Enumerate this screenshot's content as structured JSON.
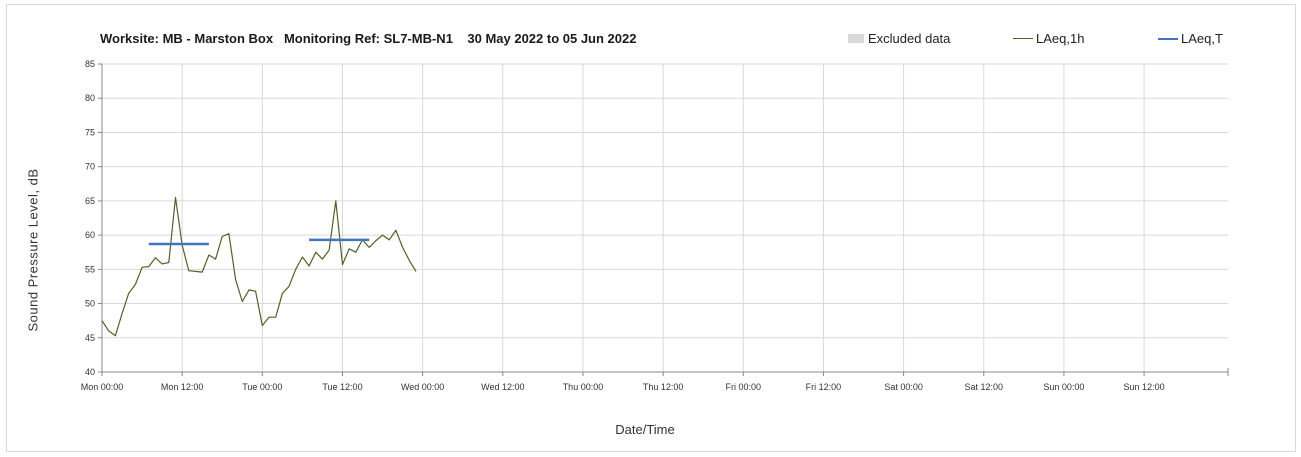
{
  "chart_data": {
    "type": "line",
    "title": "Worksite: MB - Marston Box   Monitoring Ref: SL7-MB-N1    30 May 2022 to 05 Jun 2022",
    "xlabel": "Date/Time",
    "ylabel": "Sound Pressure Level, dB",
    "ylim": [
      40,
      85
    ],
    "yticks": [
      40,
      45,
      50,
      55,
      60,
      65,
      70,
      75,
      80,
      85
    ],
    "xlim_hours": [
      0,
      168
    ],
    "xticks": [
      {
        "hour": 0,
        "label": "Mon 00:00"
      },
      {
        "hour": 12,
        "label": "Mon 12:00"
      },
      {
        "hour": 24,
        "label": "Tue 00:00"
      },
      {
        "hour": 36,
        "label": "Tue 12:00"
      },
      {
        "hour": 48,
        "label": "Wed 00:00"
      },
      {
        "hour": 60,
        "label": "Wed 12:00"
      },
      {
        "hour": 72,
        "label": "Thu 00:00"
      },
      {
        "hour": 84,
        "label": "Thu 12:00"
      },
      {
        "hour": 96,
        "label": "Fri 00:00"
      },
      {
        "hour": 108,
        "label": "Fri 12:00"
      },
      {
        "hour": 120,
        "label": "Sat 00:00"
      },
      {
        "hour": 132,
        "label": "Sat 12:00"
      },
      {
        "hour": 144,
        "label": "Sun 00:00"
      },
      {
        "hour": 156,
        "label": "Sun 12:00"
      }
    ],
    "grid": true,
    "legend_placement": "top-right",
    "legend": [
      {
        "label": "Excluded data",
        "kind": "box",
        "color": "#d9d9d9"
      },
      {
        "label": "LAeq,1h",
        "kind": "line",
        "color": "#4f6228"
      },
      {
        "label": "LAeq,T",
        "kind": "line",
        "color": "#4472c4"
      }
    ],
    "series": [
      {
        "name": "LAeq,1h",
        "color": "#4f6228",
        "x": [
          0,
          1,
          2,
          3,
          4,
          5,
          6,
          7,
          8,
          9,
          10,
          11,
          12,
          13,
          14,
          15,
          16,
          17,
          18,
          19,
          20,
          21,
          22,
          23,
          24,
          25,
          26,
          27,
          28,
          29,
          30,
          31,
          32,
          33,
          34,
          35,
          36,
          37,
          38,
          39,
          40,
          41,
          42,
          43,
          44,
          45,
          46,
          47
        ],
        "y": [
          47.5,
          46,
          45.3,
          48.5,
          51.5,
          52.8,
          55.3,
          55.4,
          56.7,
          55.8,
          56,
          65.5,
          58.5,
          54.8,
          54.7,
          54.6,
          57.1,
          56.5,
          59.8,
          60.2,
          53.5,
          50.3,
          52,
          51.8,
          46.8,
          48,
          48,
          51.5,
          52.5,
          55,
          56.8,
          55.5,
          57.5,
          56.5,
          57.8,
          65,
          55.7,
          58,
          57.5,
          59.3,
          58.2,
          59.2,
          60,
          59.3,
          60.7,
          58.2,
          56.3,
          54.7
        ]
      },
      {
        "name": "LAeq,T",
        "color": "#4472c4",
        "segments": [
          {
            "x0": 7,
            "x1": 16,
            "y": 58.7
          },
          {
            "x0": 31,
            "x1": 40,
            "y": 59.3
          }
        ]
      }
    ]
  }
}
